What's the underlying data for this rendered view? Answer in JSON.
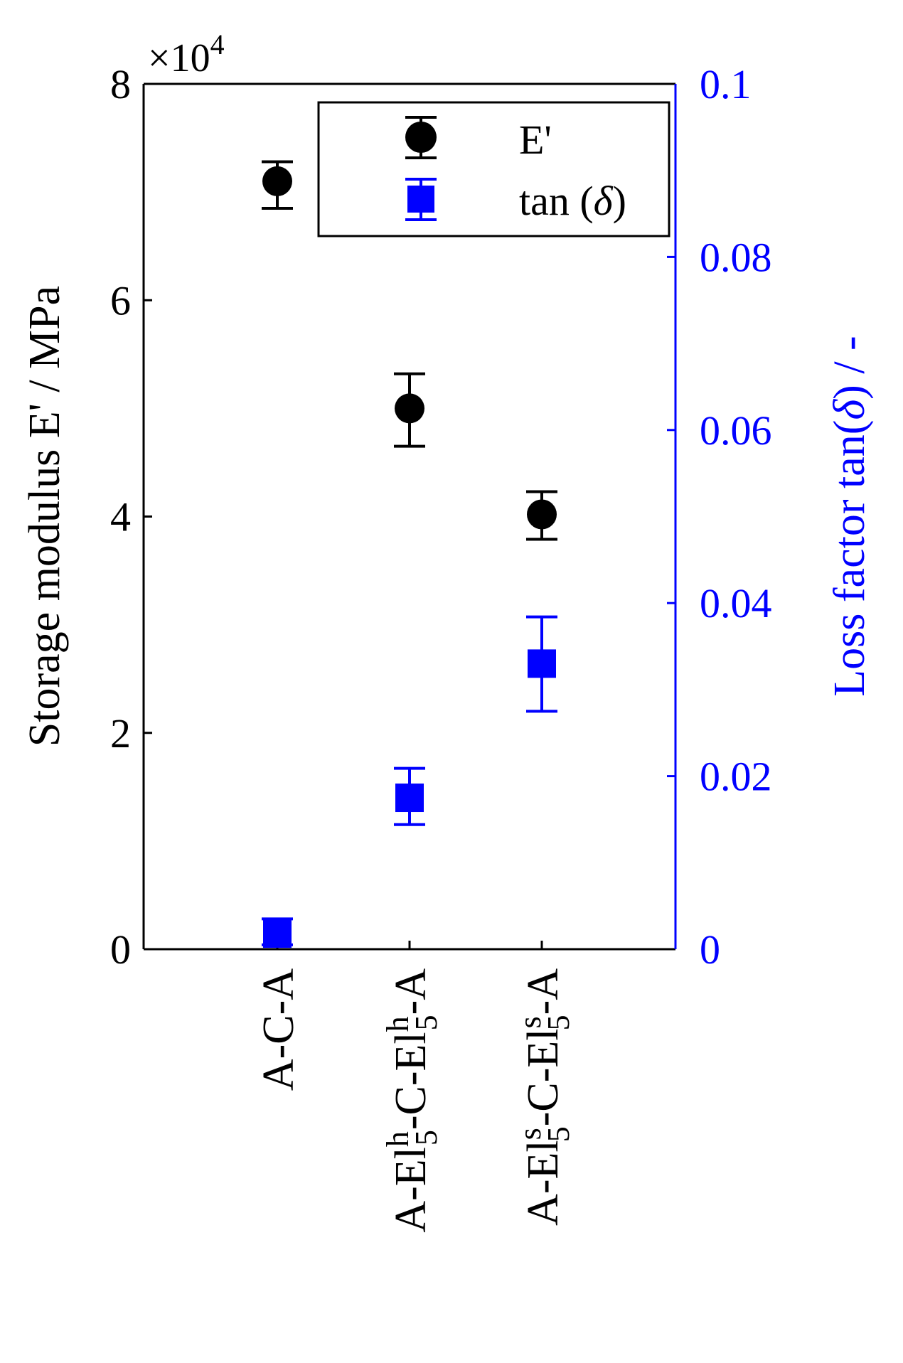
{
  "chart_data": {
    "type": "scatter",
    "categories": [
      "A-C-A",
      "A-El^h_5-C-El^h_5-A",
      "A-El^s_5-C-El^s_5-A"
    ],
    "category_labels": [
      {
        "parts": [
          {
            "t": "A-C-A"
          }
        ]
      },
      {
        "parts": [
          {
            "t": "A-El"
          },
          {
            "t": "h",
            "sup": true
          },
          {
            "t": "5",
            "sub": true
          },
          {
            "t": "-C-El"
          },
          {
            "t": "h",
            "sup": true
          },
          {
            "t": "5",
            "sub": true
          },
          {
            "t": "-A"
          }
        ]
      },
      {
        "parts": [
          {
            "t": "A-El"
          },
          {
            "t": "s",
            "sup": true
          },
          {
            "t": "5",
            "sub": true
          },
          {
            "t": "-C-El"
          },
          {
            "t": "s",
            "sup": true
          },
          {
            "t": "5",
            "sub": true
          },
          {
            "t": "-A"
          }
        ]
      }
    ],
    "series": [
      {
        "name": "E'",
        "axis": "left",
        "color": "#000000",
        "marker": "circle",
        "values": [
          71000,
          50000,
          40200
        ],
        "error_low": [
          68500,
          46500,
          37900
        ],
        "error_high": [
          72800,
          53200,
          42300
        ]
      },
      {
        "name": "tan (δ)",
        "axis": "right",
        "color": "#0000ff",
        "marker": "square",
        "values": [
          0.0018,
          0.0175,
          0.033
        ],
        "error_low": [
          0.0005,
          0.0144,
          0.0275
        ],
        "error_high": [
          0.0035,
          0.0209,
          0.0384
        ]
      }
    ],
    "left_axis": {
      "label": "Storage modulus E' / MPa",
      "ylim": [
        0,
        80000
      ],
      "ticks": [
        0,
        20000,
        40000,
        60000,
        80000
      ],
      "tick_labels": [
        "0",
        "2",
        "4",
        "6",
        "8"
      ],
      "multiplier_prefix": "×10",
      "multiplier_exp": "4",
      "color": "#000000"
    },
    "right_axis": {
      "label_prefix": "Loss factor tan(",
      "label_symbol": "δ",
      "label_suffix": ")  /  -",
      "ylim": [
        0,
        0.1
      ],
      "ticks": [
        0,
        0.02,
        0.04,
        0.06,
        0.08,
        0.1
      ],
      "tick_labels": [
        "0",
        "0.02",
        "0.04",
        "0.06",
        "0.08",
        "0.1"
      ],
      "color": "#0000ff"
    },
    "legend": {
      "placement": "top-right",
      "entries": [
        {
          "prefix": "E'",
          "symbol": "",
          "suffix": ""
        },
        {
          "prefix": "tan (",
          "symbol": "δ",
          "suffix": ")"
        }
      ]
    },
    "grid": false
  }
}
